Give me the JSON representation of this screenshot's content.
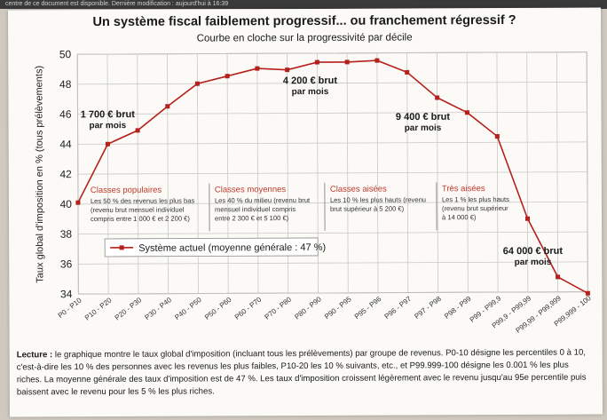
{
  "header_strip": "centre de ce document est disponible.   Dernière modification : aujourd'hui à 16:39",
  "title": "Un système fiscal faiblement progressif... ou franchement régressif ?",
  "subtitle": "Courbe en cloche sur la progressivité par décile",
  "caption": {
    "lead": "Lecture :",
    "text": "le graphique montre le taux global d'imposition (incluant tous les prélèvements) par groupe de revenus. P0-10 désigne les percentiles 0 à 10, c'est-à-dire les 10 % des personnes avec les revenus les plus faibles, P10-20 les 10 % suivants, etc., et P99.999-100 désigne les 0.001 %    les plus riches. La moyenne générale des taux d'imposition est de 47 %. Les taux d'imposition croissent légèrement avec le revenu jusqu'au 95e percentile puis baissent avec le revenu    pour les 5 % les plus riches."
  },
  "colors": {
    "line": "#b5201c",
    "grid": "#c8c8c8",
    "class_title": "#c0392b"
  },
  "chart_data": {
    "type": "line",
    "ylabel": "Taux global d'imposition en % (tous prélèvements)",
    "ylim": [
      34,
      50
    ],
    "yticks": [
      34,
      36,
      38,
      40,
      42,
      44,
      46,
      48,
      50
    ],
    "grid": true,
    "categories": [
      "P0 - P10",
      "P10 - P20",
      "P20 - P30",
      "P30 - P40",
      "P40 - P50",
      "P50 - P60",
      "P60 - P70",
      "P70 - P80",
      "P80 - P90",
      "P90 - P95",
      "P95 - P96",
      "P96 - P97",
      "P97 - P98",
      "P98 - P99",
      "P99 - P99,9",
      "P99,9 - P99,99",
      "P99,99 - P99,999",
      "P99,999 - 100"
    ],
    "series": [
      {
        "name": "Système actuel (moyenne générale : 47 %)",
        "values": [
          40.1,
          44.0,
          44.9,
          46.5,
          48.0,
          48.5,
          49.0,
          48.9,
          49.4,
          49.4,
          49.5,
          48.7,
          47.0,
          46.0,
          44.4,
          38.9,
          35.0,
          33.9
        ]
      }
    ],
    "legend_position": "bottom-left",
    "annotations": [
      {
        "lines": [
          "1 700 € brut",
          "par mois"
        ],
        "category": "P10 - P20"
      },
      {
        "lines": [
          "4 200 € brut",
          "par mois"
        ],
        "category": "P80 - P90"
      },
      {
        "lines": [
          "9 400 € brut",
          "par mois"
        ],
        "category": "P98 - P99"
      },
      {
        "lines": [
          "64 000 € brut",
          "par mois"
        ],
        "category": "P99,99 - P99,999"
      }
    ],
    "classes": [
      {
        "title": "Classes populaires",
        "desc": [
          "Les 50 % des revenus les plus bas",
          "(revenu brut mensuel individuel",
          "compris entre 1 000 € et 2 200 €)"
        ]
      },
      {
        "title": "Classes moyennes",
        "desc": [
          "Les 40 % du milieu (revenu brut",
          "mensuel individuel compris",
          "entre 2 300 € et 5 100 €)"
        ]
      },
      {
        "title": "Classes aisées",
        "desc": [
          "Les 10 % les plus hauts (revenu",
          "brut supérieur à 5 200 €)"
        ]
      },
      {
        "title": "Très aisées",
        "desc": [
          "Les 1 % les plus hauts",
          "(revenu brut supérieur",
          "à 14 000 €)"
        ]
      }
    ]
  }
}
